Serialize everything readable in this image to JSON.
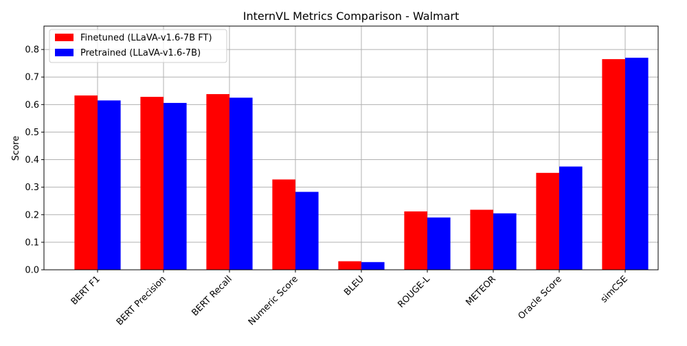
{
  "chart_data": {
    "type": "bar",
    "title": "InternVL Metrics Comparison - Walmart",
    "xlabel": "",
    "ylabel": "Score",
    "ylim": [
      0,
      0.885
    ],
    "yticks": [
      0.0,
      0.1,
      0.2,
      0.3,
      0.4,
      0.5,
      0.6,
      0.7,
      0.8
    ],
    "ytick_labels": [
      "0.0",
      "0.1",
      "0.2",
      "0.3",
      "0.4",
      "0.5",
      "0.6",
      "0.7",
      "0.8"
    ],
    "grid": true,
    "legend_position": "top-left",
    "categories": [
      "BERT F1",
      "BERT Precision",
      "BERT Recall",
      "Numeric Score",
      "BLEU",
      "ROUGE-L",
      "METEOR",
      "Oracle Score",
      "simCSE"
    ],
    "series": [
      {
        "name": "Finetuned (LLaVA-v1.6-7B FT)",
        "color": "#ff0000",
        "values": [
          0.633,
          0.628,
          0.638,
          0.328,
          0.031,
          0.212,
          0.218,
          0.352,
          0.765
        ]
      },
      {
        "name": "Pretrained (LLaVA-v1.6-7B)",
        "color": "#0000ff",
        "values": [
          0.615,
          0.606,
          0.625,
          0.283,
          0.028,
          0.19,
          0.205,
          0.375,
          0.77
        ]
      }
    ]
  }
}
